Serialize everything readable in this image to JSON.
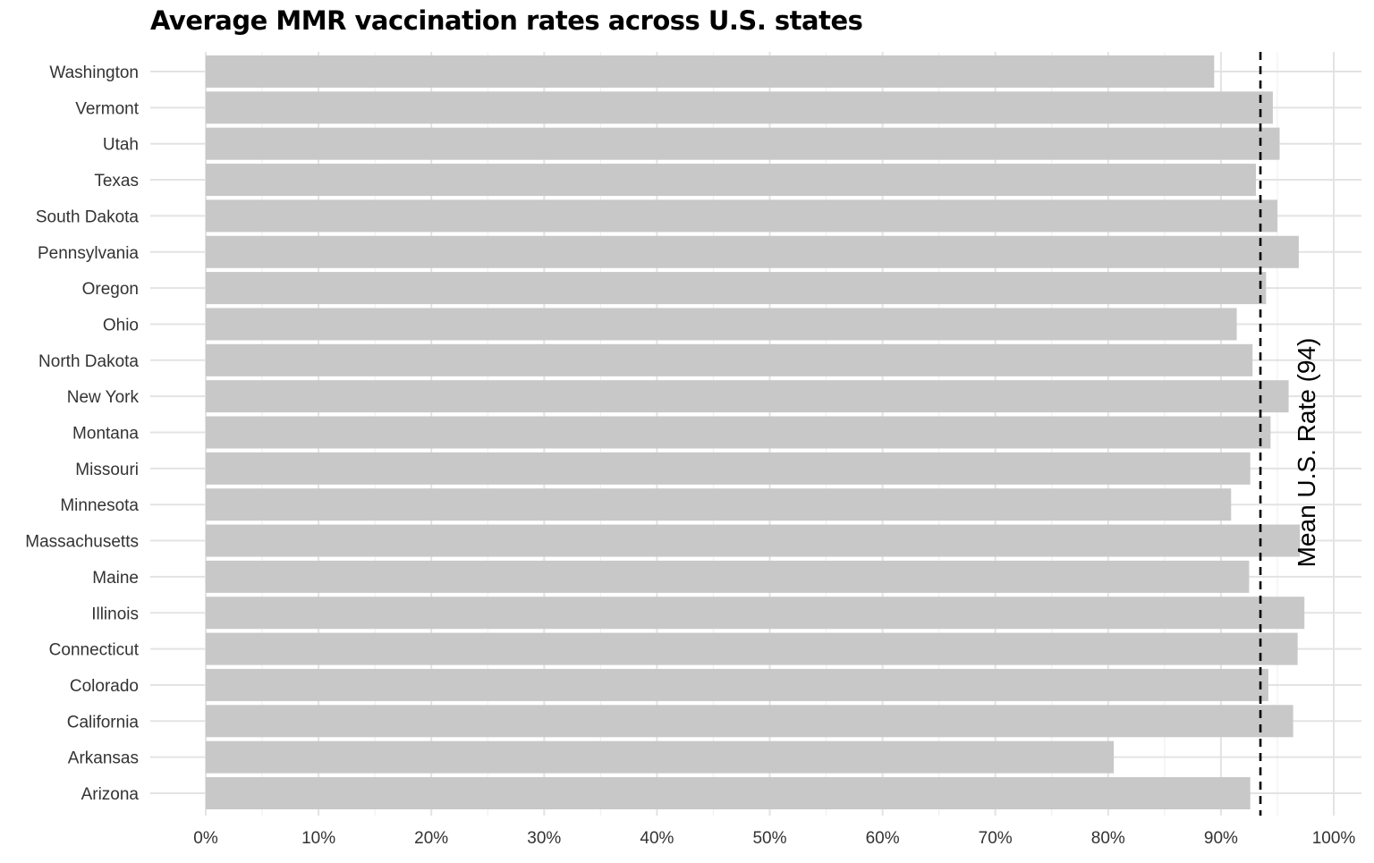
{
  "chart_data": {
    "type": "bar",
    "orientation": "horizontal",
    "title": "Average MMR vaccination rates across U.S. states",
    "xlabel": "",
    "ylabel": "",
    "categories": [
      "Washington",
      "Vermont",
      "Utah",
      "Texas",
      "South Dakota",
      "Pennsylvania",
      "Oregon",
      "Ohio",
      "North Dakota",
      "New York",
      "Montana",
      "Missouri",
      "Minnesota",
      "Massachusetts",
      "Maine",
      "Illinois",
      "Connecticut",
      "Colorado",
      "California",
      "Arkansas",
      "Arizona"
    ],
    "values": [
      89.4,
      94.6,
      95.2,
      93.1,
      95.0,
      96.9,
      94.0,
      91.4,
      92.8,
      96.0,
      94.4,
      92.6,
      90.9,
      97.0,
      92.5,
      97.4,
      96.8,
      94.2,
      96.4,
      80.5,
      92.6
    ],
    "xlim": [
      0,
      100
    ],
    "x_ticks": [
      "0%",
      "10%",
      "20%",
      "30%",
      "40%",
      "50%",
      "60%",
      "70%",
      "80%",
      "90%",
      "100%"
    ],
    "reference_line": {
      "value": 93.5,
      "style": "dashed",
      "label": "Mean U.S. Rate (94)"
    },
    "grid": true,
    "legend": "none",
    "colors": {
      "bar": "#c8c8c8",
      "grid_major": "#e3e3e3",
      "grid_minor": "#f0f0f0",
      "reference_line": "#000000",
      "text": "#333333"
    }
  }
}
